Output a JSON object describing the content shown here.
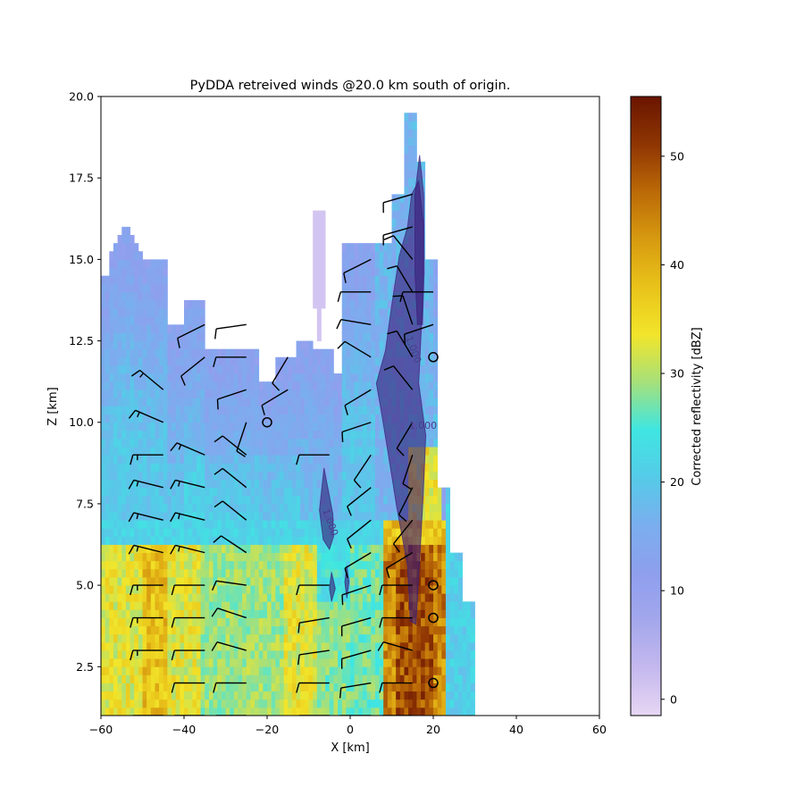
{
  "chart_data": {
    "type": "heatmap",
    "title": "PyDDA retreived winds @20.0 km south of origin.",
    "xlabel": "X [km]",
    "ylabel": "Z [km]",
    "xlim": [
      -60,
      60
    ],
    "ylim": [
      1.0,
      20.0
    ],
    "x_ticks": [
      -60,
      -40,
      -20,
      0,
      20,
      40,
      60
    ],
    "y_ticks": [
      2.5,
      5.0,
      7.5,
      10.0,
      12.5,
      15.0,
      17.5,
      20.0
    ],
    "colorbar": {
      "label": "Corrected reflectivity [dBZ]",
      "range": [
        -1.5,
        55.5
      ],
      "ticks": [
        0,
        10,
        20,
        30,
        40,
        50
      ],
      "colors": [
        "#e6d7f4",
        "#c5b8ee",
        "#a3a7ec",
        "#8e9fee",
        "#7aaeee",
        "#55cbe8",
        "#3fe6e2",
        "#a6e07a",
        "#f2e52a",
        "#e9c31a",
        "#d79a10",
        "#bb6a07",
        "#8e3503",
        "#6a1500"
      ]
    },
    "contour_labels": [
      {
        "text": "1.000",
        "x": 14.5,
        "y": 12.2
      },
      {
        "text": "1.000",
        "x": 17.5,
        "y": 9.8
      },
      {
        "text": "1.000",
        "x": -5.5,
        "y": 6.9
      }
    ],
    "updraft_regions": [
      {
        "name": "main",
        "points": [
          [
            16.5,
            17.4
          ],
          [
            17.7,
            16.0
          ],
          [
            17.4,
            13.6
          ],
          [
            16.5,
            11.2
          ],
          [
            18.2,
            9.6
          ],
          [
            17.6,
            7.8
          ],
          [
            16.6,
            5.5
          ],
          [
            15.8,
            3.8
          ],
          [
            14.5,
            3.9
          ],
          [
            13.8,
            5.6
          ],
          [
            11.2,
            7.4
          ],
          [
            9.2,
            9.0
          ],
          [
            7.4,
            10.4
          ],
          [
            6.3,
            11.2
          ],
          [
            8.5,
            12.2
          ],
          [
            10.0,
            13.6
          ],
          [
            11.8,
            15.1
          ],
          [
            13.8,
            16.0
          ],
          [
            14.8,
            17.0
          ]
        ]
      },
      {
        "name": "tower",
        "points": [
          [
            16.7,
            18.2
          ],
          [
            17.7,
            17.0
          ],
          [
            17.8,
            14.6
          ],
          [
            17.4,
            13.0
          ],
          [
            16.2,
            13.0
          ],
          [
            15.6,
            14.6
          ],
          [
            15.6,
            17.0
          ]
        ]
      },
      {
        "name": "isolated-left",
        "points": [
          [
            -6.3,
            8.6
          ],
          [
            -4.2,
            7.2
          ],
          [
            -4.0,
            6.5
          ],
          [
            -5.0,
            6.1
          ],
          [
            -6.5,
            6.4
          ],
          [
            -7.4,
            7.3
          ]
        ]
      },
      {
        "name": "small-left",
        "points": [
          [
            -4.5,
            5.4
          ],
          [
            -3.6,
            4.9
          ],
          [
            -4.5,
            4.5
          ],
          [
            -5.0,
            4.9
          ]
        ]
      },
      {
        "name": "small-mid",
        "points": [
          [
            -0.8,
            5.6
          ],
          [
            -0.3,
            5.1
          ],
          [
            -0.8,
            4.6
          ],
          [
            -1.3,
            5.1
          ]
        ]
      }
    ],
    "series": [
      {
        "values": [
          {
            "x": -45,
            "z": 1.0,
            "u": 8,
            "v": 0
          },
          {
            "x": -45,
            "z": 3.0,
            "u": 8,
            "v": 0
          },
          {
            "x": -45,
            "z": 4.0,
            "u": 8,
            "v": 0
          },
          {
            "x": -45,
            "z": 5.0,
            "u": 8,
            "v": 0
          },
          {
            "x": -45,
            "z": 6.0,
            "u": 8,
            "v": -2
          },
          {
            "x": -45,
            "z": 7.0,
            "u": 8,
            "v": -2
          },
          {
            "x": -45,
            "z": 8.0,
            "u": 8,
            "v": -2
          },
          {
            "x": -45,
            "z": 9.0,
            "u": 8,
            "v": 0
          },
          {
            "x": -45,
            "z": 10.0,
            "u": 7,
            "v": -3
          },
          {
            "x": -45,
            "z": 11.0,
            "u": 6,
            "v": -5
          },
          {
            "x": -35,
            "z": 1.0,
            "u": 8,
            "v": 0
          },
          {
            "x": -35,
            "z": 2.0,
            "u": 7,
            "v": 0
          },
          {
            "x": -35,
            "z": 3.0,
            "u": 7,
            "v": 0
          },
          {
            "x": -35,
            "z": 4.0,
            "u": 7,
            "v": 0
          },
          {
            "x": -35,
            "z": 5.0,
            "u": 7,
            "v": 0
          },
          {
            "x": -35,
            "z": 6.0,
            "u": 8,
            "v": -2
          },
          {
            "x": -35,
            "z": 7.0,
            "u": 8,
            "v": -2
          },
          {
            "x": -35,
            "z": 8.0,
            "u": 8,
            "v": -2
          },
          {
            "x": -35,
            "z": 9.0,
            "u": 7,
            "v": -3
          },
          {
            "x": -35,
            "z": 12.0,
            "u": 5,
            "v": 4
          },
          {
            "x": -35,
            "z": 13.0,
            "u": 6,
            "v": 3
          },
          {
            "x": -25,
            "z": 1.0,
            "u": 6,
            "v": 0
          },
          {
            "x": -25,
            "z": 2.0,
            "u": 7,
            "v": 0
          },
          {
            "x": -25,
            "z": 3.0,
            "u": 7,
            "v": -2
          },
          {
            "x": -25,
            "z": 4.0,
            "u": 6,
            "v": -2
          },
          {
            "x": -25,
            "z": 5.0,
            "u": 7,
            "v": -1
          },
          {
            "x": -25,
            "z": 6.0,
            "u": 6,
            "v": -4
          },
          {
            "x": -25,
            "z": 7.0,
            "u": 5,
            "v": -4
          },
          {
            "x": -25,
            "z": 8.0,
            "u": 5,
            "v": -4
          },
          {
            "x": -25,
            "z": 9.0,
            "u": 5,
            "v": -4
          },
          {
            "x": -25,
            "z": 10.0,
            "u": 2,
            "v": 6
          },
          {
            "x": -25,
            "z": 11.0,
            "u": 6,
            "v": 2
          },
          {
            "x": -25,
            "z": 12.0,
            "u": 6,
            "v": 0
          },
          {
            "x": -25,
            "z": 13.0,
            "u": 7,
            "v": 1
          },
          {
            "x": -20,
            "z": 10.0,
            "u": 0,
            "v": 0
          },
          {
            "x": -15,
            "z": 12.0,
            "u": 3,
            "v": 5
          },
          {
            "x": -15,
            "z": 11.0,
            "u": 5,
            "v": 3
          },
          {
            "x": -5,
            "z": 1.0,
            "u": 6,
            "v": 0
          },
          {
            "x": -5,
            "z": 2.0,
            "u": 6,
            "v": 0
          },
          {
            "x": -5,
            "z": 3.0,
            "u": 7,
            "v": 1
          },
          {
            "x": -5,
            "z": 4.0,
            "u": 6,
            "v": 1
          },
          {
            "x": -5,
            "z": 5.0,
            "u": 6,
            "v": 0
          },
          {
            "x": -5,
            "z": 9.0,
            "u": 6,
            "v": 0
          },
          {
            "x": 5,
            "z": 1.0,
            "u": 6,
            "v": 0
          },
          {
            "x": 5,
            "z": 2.0,
            "u": 6,
            "v": 1
          },
          {
            "x": 5,
            "z": 3.0,
            "u": 7,
            "v": 2
          },
          {
            "x": 5,
            "z": 4.0,
            "u": 7,
            "v": 2
          },
          {
            "x": 5,
            "z": 5.0,
            "u": 6,
            "v": 2
          },
          {
            "x": 5,
            "z": 6.0,
            "u": 5,
            "v": 3
          },
          {
            "x": 5,
            "z": 7.0,
            "u": 5,
            "v": 4
          },
          {
            "x": 5,
            "z": 8.0,
            "u": 5,
            "v": 4
          },
          {
            "x": 5,
            "z": 9.0,
            "u": 4,
            "v": 6
          },
          {
            "x": 5,
            "z": 10.0,
            "u": 6,
            "v": 2
          },
          {
            "x": 5,
            "z": 11.0,
            "u": 5,
            "v": 3
          },
          {
            "x": 5,
            "z": 12.0,
            "u": 5,
            "v": -3
          },
          {
            "x": 5,
            "z": 13.0,
            "u": 6,
            "v": -1
          },
          {
            "x": 5,
            "z": 14.0,
            "u": 6,
            "v": 0
          },
          {
            "x": 5,
            "z": 15.0,
            "u": 6,
            "v": 3
          },
          {
            "x": 15,
            "z": 1.0,
            "u": 6,
            "v": 0
          },
          {
            "x": 15,
            "z": 2.0,
            "u": 6,
            "v": 0
          },
          {
            "x": 15,
            "z": 3.0,
            "u": 7,
            "v": -2
          },
          {
            "x": 15,
            "z": 4.0,
            "u": 7,
            "v": 0
          },
          {
            "x": 15,
            "z": 5.0,
            "u": 5,
            "v": 0
          },
          {
            "x": 15,
            "z": 6.0,
            "u": 5,
            "v": 3
          },
          {
            "x": 15,
            "z": 7.0,
            "u": 4,
            "v": 5
          },
          {
            "x": 15,
            "z": 8.0,
            "u": 3,
            "v": 6
          },
          {
            "x": 15,
            "z": 9.0,
            "u": 2,
            "v": 6
          },
          {
            "x": 15,
            "z": 10.0,
            "u": 3,
            "v": 5
          },
          {
            "x": 15,
            "z": 11.0,
            "u": 4,
            "v": -5
          },
          {
            "x": 15,
            "z": 12.0,
            "u": 3,
            "v": -5
          },
          {
            "x": 15,
            "z": 13.0,
            "u": 2,
            "v": -6
          },
          {
            "x": 15,
            "z": 14.0,
            "u": 3,
            "v": -5
          },
          {
            "x": 15,
            "z": 15.0,
            "u": 4,
            "v": -5
          },
          {
            "x": 15,
            "z": 16.0,
            "u": 7,
            "v": 2
          },
          {
            "x": 15,
            "z": 17.0,
            "u": 7,
            "v": 2
          },
          {
            "x": 20,
            "z": 2.0,
            "u": 0,
            "v": 0
          },
          {
            "x": 20,
            "z": 4.0,
            "u": 0,
            "v": 0
          },
          {
            "x": 20,
            "z": 5.0,
            "u": 0,
            "v": 0
          },
          {
            "x": 20,
            "z": 12.0,
            "u": 0,
            "v": 0
          },
          {
            "x": 20,
            "z": 14.0,
            "u": 7,
            "v": 0
          },
          {
            "x": 20,
            "z": 13.0,
            "u": 6,
            "v": 2
          }
        ]
      }
    ],
    "legend": "none",
    "grid": false
  }
}
